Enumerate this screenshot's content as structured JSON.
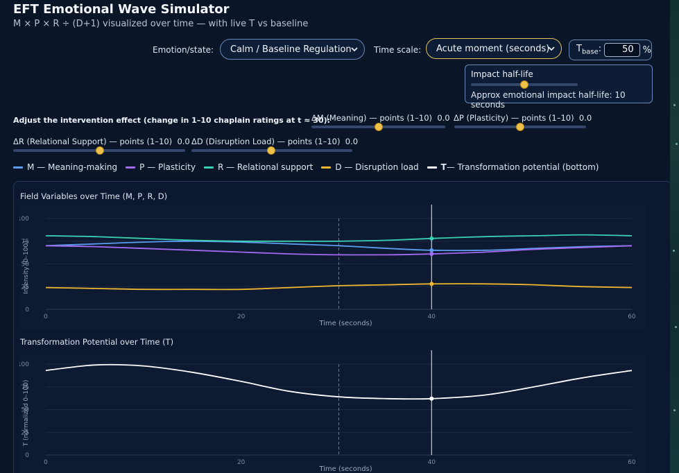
{
  "app": {
    "title": "EFT Emotional Wave Simulator",
    "subtitle": "M × P × R ÷ (D+1) visualized over time — with live T vs baseline"
  },
  "controls": {
    "emotion_label": "Emotion/state:",
    "emotion_value": "Calm / Baseline Regulation",
    "timescale_label": "Time scale:",
    "timescale_value": "Acute moment (seconds)",
    "tbase_label": "T",
    "tbase_sub": "base",
    "tbase_suffix": ":",
    "tbase_value": "50",
    "tbase_unit": "%",
    "halflife_title": "Impact half-life",
    "halflife_value": 0.5,
    "halflife_desc": "Approx emotional impact half-life: 10 seconds"
  },
  "intervention": {
    "title": "Adjust the intervention effect (change in 1–10 chaplain ratings at t ≈ 30):",
    "sliders": [
      {
        "label": "ΔM (Meaning) — points (1–10)",
        "value_text": "0.0",
        "value": 0.0
      },
      {
        "label": "ΔP (Plasticity) — points (1–10)",
        "value_text": "0.0",
        "value": 0.0
      },
      {
        "label": "ΔR (Relational Support) — points (1–10)",
        "value_text": "0.0",
        "value": 0.0
      },
      {
        "label": "ΔD (Disruption Load) — points (1–10)",
        "value_text": "0.0",
        "value": 0.0
      }
    ]
  },
  "legend": {
    "items": [
      {
        "label": "M — Meaning-making",
        "color": "#5b9cf0"
      },
      {
        "label": "P — Plasticity",
        "color": "#a36bf2"
      },
      {
        "label": "R — Relational support",
        "color": "#39d1b2"
      },
      {
        "label": "D — Disruption load",
        "color": "#f0b72f"
      }
    ],
    "t_label_bold": "T",
    "t_label_rest": " — Transformation potential (bottom)",
    "t_color": "#ffffff"
  },
  "chart_data": [
    {
      "type": "line",
      "title": "Field Variables over Time (M, P, R, D)",
      "xlabel": "Time (seconds)",
      "ylabel": "Intensity (0–100)",
      "xlim": [
        0,
        60
      ],
      "ylim": [
        0,
        100
      ],
      "yticks": [
        "0",
        "25",
        "50",
        "75",
        "100"
      ],
      "xticks": [
        "0",
        "20",
        "40",
        "60"
      ],
      "xtick_values": [
        0,
        20,
        39.5,
        60
      ],
      "intervention_time": 30,
      "cursor_time": 39.5,
      "grid": true,
      "x": [
        0,
        5,
        10,
        15,
        20,
        25,
        30,
        35,
        39.5,
        45,
        50,
        55,
        60
      ],
      "series": [
        {
          "key": "M",
          "color": "#5b9cf0",
          "values": [
            70,
            72,
            74,
            75,
            74,
            72,
            70,
            67,
            65,
            65,
            67,
            69,
            70
          ]
        },
        {
          "key": "P",
          "color": "#a36bf2",
          "values": [
            70,
            69,
            67,
            65,
            63,
            61,
            60,
            60,
            61,
            63,
            66,
            68,
            70
          ]
        },
        {
          "key": "R",
          "color": "#39d1b2",
          "values": [
            81,
            80,
            78,
            76,
            75,
            75,
            75,
            76,
            78,
            80,
            81,
            82,
            81
          ]
        },
        {
          "key": "D",
          "color": "#f0b72f",
          "values": [
            24,
            23,
            22,
            22,
            22,
            24,
            26,
            27,
            28,
            28,
            27,
            25,
            24
          ]
        }
      ]
    },
    {
      "type": "line",
      "title": "Transformation Potential over Time (T)",
      "xlabel": "Time (seconds)",
      "ylabel": "T (normalized 0–100)",
      "xlim": [
        0,
        60
      ],
      "ylim": [
        0,
        100
      ],
      "yticks": [
        "0",
        "25",
        "50",
        "75",
        "100"
      ],
      "xticks": [
        "0",
        "20",
        "40",
        "60"
      ],
      "xtick_values": [
        0,
        20,
        39.5,
        60
      ],
      "intervention_time": 30,
      "cursor_time": 39.5,
      "grid": true,
      "x": [
        0,
        5,
        10,
        15,
        20,
        25,
        30,
        35,
        39.5,
        45,
        50,
        55,
        60
      ],
      "series": [
        {
          "key": "T",
          "color": "#ffffff",
          "values": [
            93,
            99,
            98,
            91,
            81,
            70,
            64,
            62,
            62,
            66,
            75,
            85,
            93
          ]
        }
      ]
    }
  ]
}
